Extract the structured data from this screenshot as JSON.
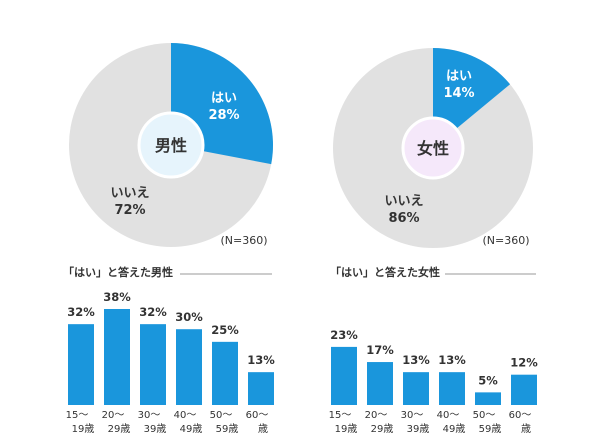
{
  "colors": {
    "accent": "#1a96dc",
    "grey": "#e1e1e1",
    "male_center": "#e6f4fc",
    "female_center": "#f5e8fa",
    "text": "#333333",
    "rule": "#999999"
  },
  "chart_data": [
    {
      "type": "pie",
      "center_label": "男性",
      "note": "(N=360)",
      "slices": [
        {
          "label": "はい",
          "value": 28,
          "text": "28%"
        },
        {
          "label": "いいえ",
          "value": 72,
          "text": "72%"
        }
      ]
    },
    {
      "type": "pie",
      "center_label": "女性",
      "note": "(N=360)",
      "slices": [
        {
          "label": "はい",
          "value": 14,
          "text": "14%"
        },
        {
          "label": "いいえ",
          "value": 86,
          "text": "86%"
        }
      ]
    },
    {
      "type": "bar",
      "title": "「はい」と答えた男性",
      "categories": [
        [
          "15〜",
          "19歳"
        ],
        [
          "20〜",
          "29歳"
        ],
        [
          "30〜",
          "39歳"
        ],
        [
          "40〜",
          "49歳"
        ],
        [
          "50〜",
          "59歳"
        ],
        [
          "60〜",
          "歳"
        ]
      ],
      "values": [
        32,
        38,
        32,
        30,
        25,
        13
      ],
      "value_labels": [
        "32%",
        "38%",
        "32%",
        "30%",
        "25%",
        "13%"
      ],
      "ylim": [
        0,
        38
      ]
    },
    {
      "type": "bar",
      "title": "「はい」と答えた女性",
      "categories": [
        [
          "15〜",
          "19歳"
        ],
        [
          "20〜",
          "29歳"
        ],
        [
          "30〜",
          "39歳"
        ],
        [
          "40〜",
          "49歳"
        ],
        [
          "50〜",
          "59歳"
        ],
        [
          "60〜",
          "歳"
        ]
      ],
      "values": [
        23,
        17,
        13,
        13,
        5,
        12
      ],
      "value_labels": [
        "23%",
        "17%",
        "13%",
        "13%",
        "5%",
        "12%"
      ],
      "ylim": [
        0,
        38
      ]
    }
  ]
}
